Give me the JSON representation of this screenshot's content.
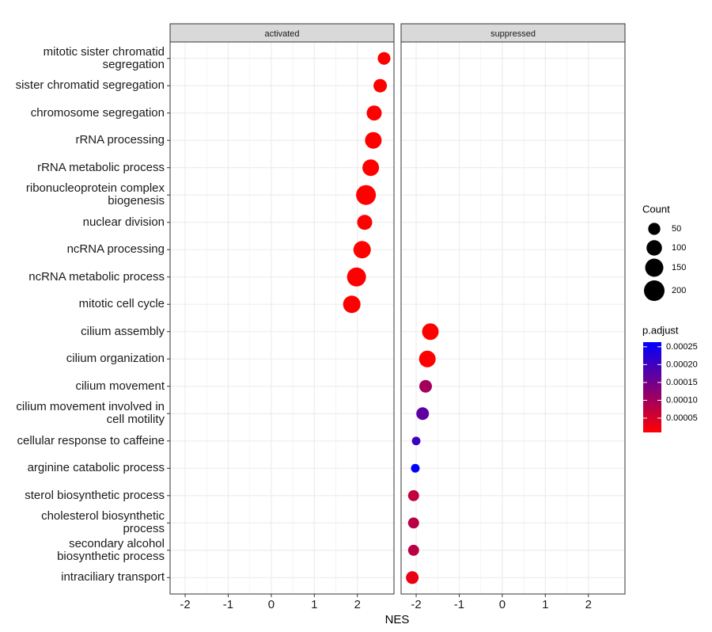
{
  "chart_data": {
    "type": "dot",
    "xlabel": "NES",
    "categories": [
      "mitotic sister chromatid\nsegregation",
      "sister chromatid segregation",
      "chromosome segregation",
      "rRNA processing",
      "rRNA metabolic process",
      "ribonucleoprotein complex\nbiogenesis",
      "nuclear division",
      "ncRNA processing",
      "ncRNA metabolic process",
      "mitotic cell cycle",
      "cilium assembly",
      "cilium organization",
      "cilium movement",
      "cilium movement involved in\ncell motility",
      "cellular response to caffeine",
      "arginine catabolic process",
      "sterol biosynthetic process",
      "cholesterol biosynthetic\nprocess",
      "secondary alcohol\nbiosynthetic process",
      "intraciliary transport"
    ],
    "series": [
      {
        "name": "activated",
        "values": [
          2.62,
          2.53,
          2.39,
          2.37,
          2.31,
          2.2,
          2.17,
          2.11,
          1.98,
          1.87,
          null,
          null,
          null,
          null,
          null,
          null,
          null,
          null,
          null,
          null
        ],
        "size": [
          57,
          68,
          93,
          120,
          120,
          183,
          93,
          135,
          166,
          135,
          null,
          null,
          null,
          null,
          null,
          null,
          null,
          null,
          null,
          null
        ],
        "p_adjust": [
          1e-05,
          1e-05,
          1e-05,
          1e-05,
          1e-05,
          1e-05,
          1e-05,
          1e-05,
          1e-05,
          1e-05,
          null,
          null,
          null,
          null,
          null,
          null,
          null,
          null,
          null,
          null
        ]
      },
      {
        "name": "suppressed",
        "values": [
          null,
          null,
          null,
          null,
          null,
          null,
          null,
          null,
          null,
          null,
          -1.67,
          -1.74,
          -1.78,
          -1.85,
          -2.0,
          -2.02,
          -2.06,
          -2.06,
          -2.06,
          -2.09
        ],
        "size": [
          null,
          null,
          null,
          null,
          null,
          null,
          null,
          null,
          null,
          null,
          120,
          120,
          57,
          57,
          10,
          11,
          36,
          36,
          36,
          57
        ],
        "p_adjust": [
          null,
          null,
          null,
          null,
          null,
          null,
          null,
          null,
          null,
          null,
          1e-05,
          1e-05,
          0.0001,
          0.00017,
          0.0002,
          0.000263,
          7e-05,
          8e-05,
          8e-05,
          3e-05
        ]
      }
    ],
    "xlim": [
      -2.35,
      2.85
    ],
    "xticks": [
      -2,
      -1,
      0,
      1,
      2
    ],
    "grid": true,
    "size_legend": {
      "title": "Count",
      "breaks": [
        50,
        100,
        150,
        200
      ]
    },
    "color_legend": {
      "title": "p.adjust",
      "lim": [
        1e-05,
        0.000263
      ],
      "ticks": [
        5e-05,
        {
          "value": 0.0001,
          "label": "0.00010"
        },
        0.00015,
        {
          "value": 0.0002,
          "label": "0.00020"
        },
        0.00025
      ],
      "low": "#ff0000",
      "high": "#0000ff"
    }
  }
}
